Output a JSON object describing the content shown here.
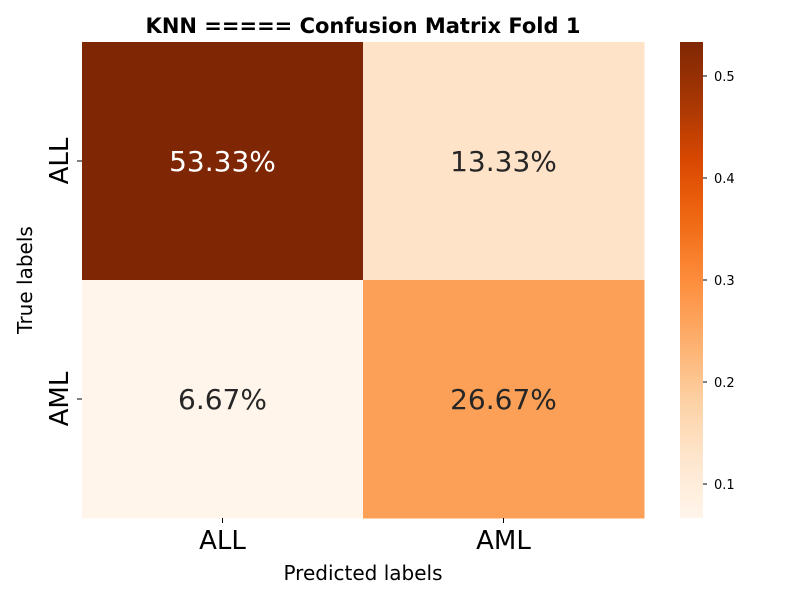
{
  "chart_data": {
    "type": "heatmap",
    "title": "KNN ===== Confusion Matrix Fold 1",
    "xlabel": "Predicted labels",
    "ylabel": "True labels",
    "x_categories": [
      "ALL",
      "AML"
    ],
    "y_categories": [
      "ALL",
      "AML"
    ],
    "values": [
      [
        0.5333,
        0.1333
      ],
      [
        0.0667,
        0.2667
      ]
    ],
    "annotations": [
      [
        "53.33%",
        "13.33%"
      ],
      [
        "6.67%",
        "26.67%"
      ]
    ],
    "colormap": "Oranges",
    "colorbar": {
      "range": [
        0.0667,
        0.5333
      ],
      "ticks": [
        0.1,
        0.2,
        0.3,
        0.4,
        0.5
      ],
      "tick_labels": [
        "0.1",
        "0.2",
        "0.3",
        "0.4",
        "0.5"
      ]
    },
    "grid": false
  }
}
